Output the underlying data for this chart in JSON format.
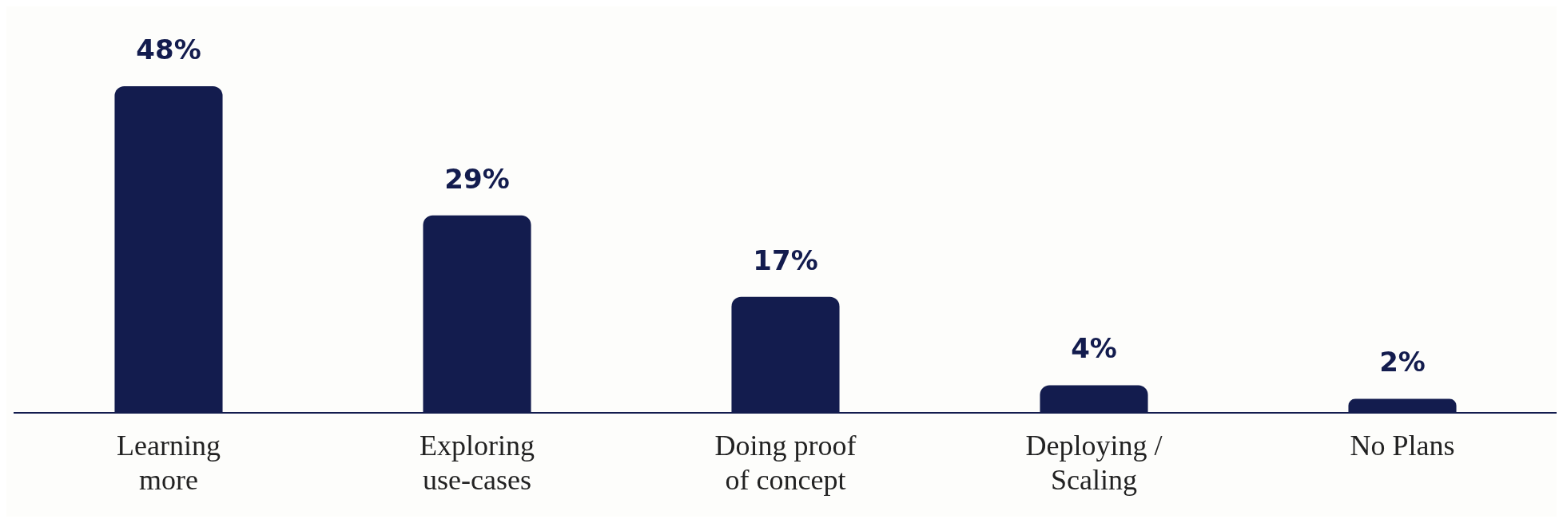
{
  "chart_data": {
    "type": "bar",
    "categories": [
      "Learning more",
      "Exploring use-cases",
      "Doing proof of concept",
      "Deploying / Scaling",
      "No Plans"
    ],
    "values": [
      48,
      29,
      17,
      4,
      2
    ],
    "value_labels": [
      "48%",
      "29%",
      "17%",
      "4%",
      "2%"
    ],
    "color": "#131c4e",
    "grid": false,
    "legend": false
  }
}
